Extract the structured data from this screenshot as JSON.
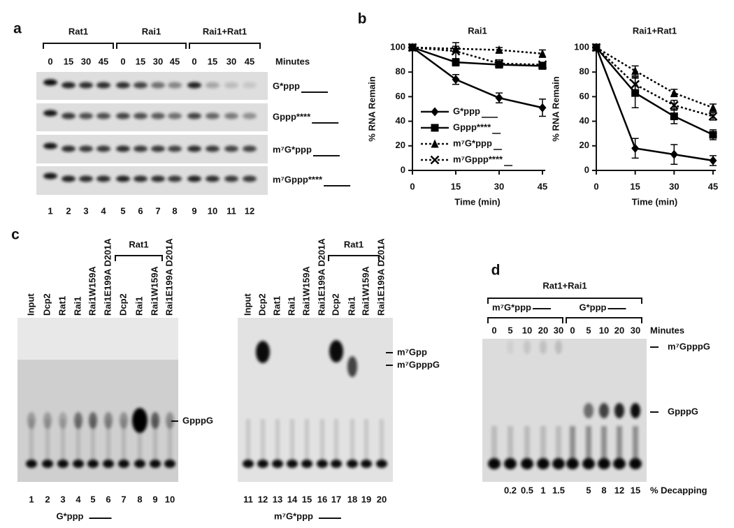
{
  "panel_a": {
    "label": "a",
    "groups": [
      "Rat1",
      "Rai1",
      "Rai1+Rat1"
    ],
    "minutes_label": "Minutes",
    "minutes": [
      "0",
      "15",
      "30",
      "45",
      "0",
      "15",
      "30",
      "45",
      "0",
      "15",
      "30",
      "45"
    ],
    "rows": [
      "G*ppp",
      "Gppp****",
      "m⁷G*ppp",
      "m⁷Gppp****"
    ],
    "lanes": [
      "1",
      "2",
      "3",
      "4",
      "5",
      "6",
      "7",
      "8",
      "9",
      "10",
      "11",
      "12"
    ]
  },
  "panel_b": {
    "label": "b"
  },
  "chart_data": [
    {
      "type": "line",
      "title": "Rai1",
      "x_label": "Time (min)",
      "y_label": "% RNA Remain",
      "x": [
        0,
        15,
        30,
        45
      ],
      "xlim": [
        0,
        45
      ],
      "xticks": [
        0,
        15,
        30,
        45
      ],
      "ylim": [
        0,
        100
      ],
      "yticks": [
        0,
        20,
        40,
        60,
        80,
        100
      ],
      "legend": "lower left",
      "series": [
        {
          "name": "G*ppp",
          "color": "#000000",
          "marker": "diamond",
          "dash": "solid",
          "values": [
            100,
            74,
            59,
            51
          ],
          "errors": [
            0,
            4,
            4,
            7
          ]
        },
        {
          "name": "Gppp****",
          "color": "#000000",
          "marker": "square",
          "dash": "solid",
          "values": [
            100,
            88,
            86,
            85
          ],
          "errors": [
            0,
            3,
            2,
            2
          ]
        },
        {
          "name": "m⁷G*ppp",
          "color": "#000000",
          "marker": "triangle",
          "dash": "dotted",
          "values": [
            100,
            99,
            98,
            95
          ],
          "errors": [
            0,
            2,
            2,
            3
          ]
        },
        {
          "name": "m⁷Gppp****",
          "color": "#000000",
          "marker": "x",
          "dash": "dotted",
          "values": [
            100,
            97,
            87,
            86
          ],
          "errors": [
            0,
            7,
            3,
            2
          ]
        }
      ]
    },
    {
      "type": "line",
      "title": "Rai1+Rat1",
      "x_label": "Time (min)",
      "y_label": "% RNA Remain",
      "x": [
        0,
        15,
        30,
        45
      ],
      "xlim": [
        0,
        45
      ],
      "xticks": [
        0,
        15,
        30,
        45
      ],
      "ylim": [
        0,
        100
      ],
      "yticks": [
        0,
        20,
        40,
        60,
        80,
        100
      ],
      "series": [
        {
          "color": "#000000",
          "marker": "diamond",
          "dash": "solid",
          "values": [
            100,
            18,
            13,
            8
          ],
          "errors": [
            0,
            8,
            8,
            4
          ]
        },
        {
          "color": "#000000",
          "marker": "square",
          "dash": "solid",
          "values": [
            100,
            63,
            44,
            29
          ],
          "errors": [
            0,
            12,
            6,
            4
          ]
        },
        {
          "color": "#000000",
          "marker": "triangle",
          "dash": "dotted",
          "values": [
            100,
            81,
            63,
            51
          ],
          "errors": [
            0,
            4,
            3,
            3
          ]
        },
        {
          "color": "#000000",
          "marker": "x",
          "dash": "dotted",
          "values": [
            100,
            70,
            53,
            44
          ],
          "errors": [
            0,
            6,
            4,
            3
          ]
        }
      ]
    }
  ],
  "panel_c": {
    "label": "c",
    "left": {
      "group": "Rat1",
      "lane_labels": [
        "Input",
        "Dcp2",
        "Rat1",
        "Rai1",
        "Rai1W159A",
        "Rai1E199A D201A",
        "Dcp2",
        "Rai1",
        "Rai1W159A",
        "Rai1E199A D201A"
      ],
      "lanes": [
        "1",
        "2",
        "3",
        "4",
        "5",
        "6",
        "7",
        "8",
        "9",
        "10"
      ],
      "band_labels": [
        "GpppG"
      ],
      "substrate": "G*ppp"
    },
    "right": {
      "group": "Rat1",
      "lane_labels": [
        "Input",
        "Dcp2",
        "Rat1",
        "Rai1",
        "Rai1W159A",
        "Rai1E199A D201A",
        "Dcp2",
        "Rai1",
        "Rai1W159A",
        "Rai1E199A D201A"
      ],
      "lanes": [
        "11",
        "12",
        "13",
        "14",
        "15",
        "16",
        "17",
        "18",
        "19",
        "20"
      ],
      "band_labels": [
        "m⁷Gpp",
        "m⁷GpppG"
      ],
      "substrate": "m⁷G*ppp"
    }
  },
  "panel_d": {
    "label": "d",
    "group": "Rat1+Rai1",
    "subgroups": [
      "m⁷G*ppp",
      "G*ppp"
    ],
    "minutes_label": "Minutes",
    "minutes": [
      "0",
      "5",
      "10",
      "20",
      "30",
      "0",
      "5",
      "10",
      "20",
      "30"
    ],
    "band_labels": [
      "m⁷GpppG",
      "GpppG"
    ],
    "decapping": [
      "0.2",
      "0.5",
      "1",
      "1.5",
      "5",
      "8",
      "12",
      "15"
    ],
    "decapping_label": "% Decapping"
  }
}
